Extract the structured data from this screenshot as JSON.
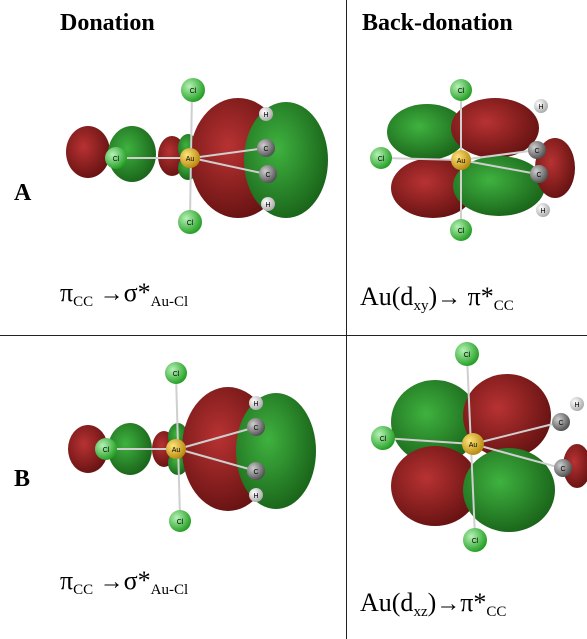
{
  "headers": {
    "left": "Donation",
    "right": "Back-donation"
  },
  "rows": [
    {
      "label": "A",
      "donation": {
        "pi": "π",
        "pi_sub": "CC",
        "arrow": "→",
        "sigma": "σ*",
        "sigma_sub": "Au-Cl"
      },
      "back": {
        "au": "Au(d",
        "d_sub": "xy",
        "close": ")",
        "arrow": "→",
        "pi": "π*",
        "pi_sub": "CC"
      }
    },
    {
      "label": "B",
      "donation": {
        "pi": "π",
        "pi_sub": "CC",
        "arrow": "→",
        "sigma": "σ*",
        "sigma_sub": "Au-Cl"
      },
      "back": {
        "au": "Au(d",
        "d_sub": "xz",
        "close": ")",
        "arrow": "→",
        "pi": "π*",
        "pi_sub": "CC"
      }
    }
  ],
  "atoms": {
    "gold": "Au",
    "chlorine": "Cl",
    "carbon": "C",
    "hydrogen": "H"
  },
  "colors": {
    "lobe_red": "#8b1a1a",
    "lobe_green": "#2e8b2e",
    "cl_atom": "#3cc43c",
    "au_atom": "#d4a017",
    "c_atom": "#777777",
    "h_atom": "#eeeeee"
  }
}
